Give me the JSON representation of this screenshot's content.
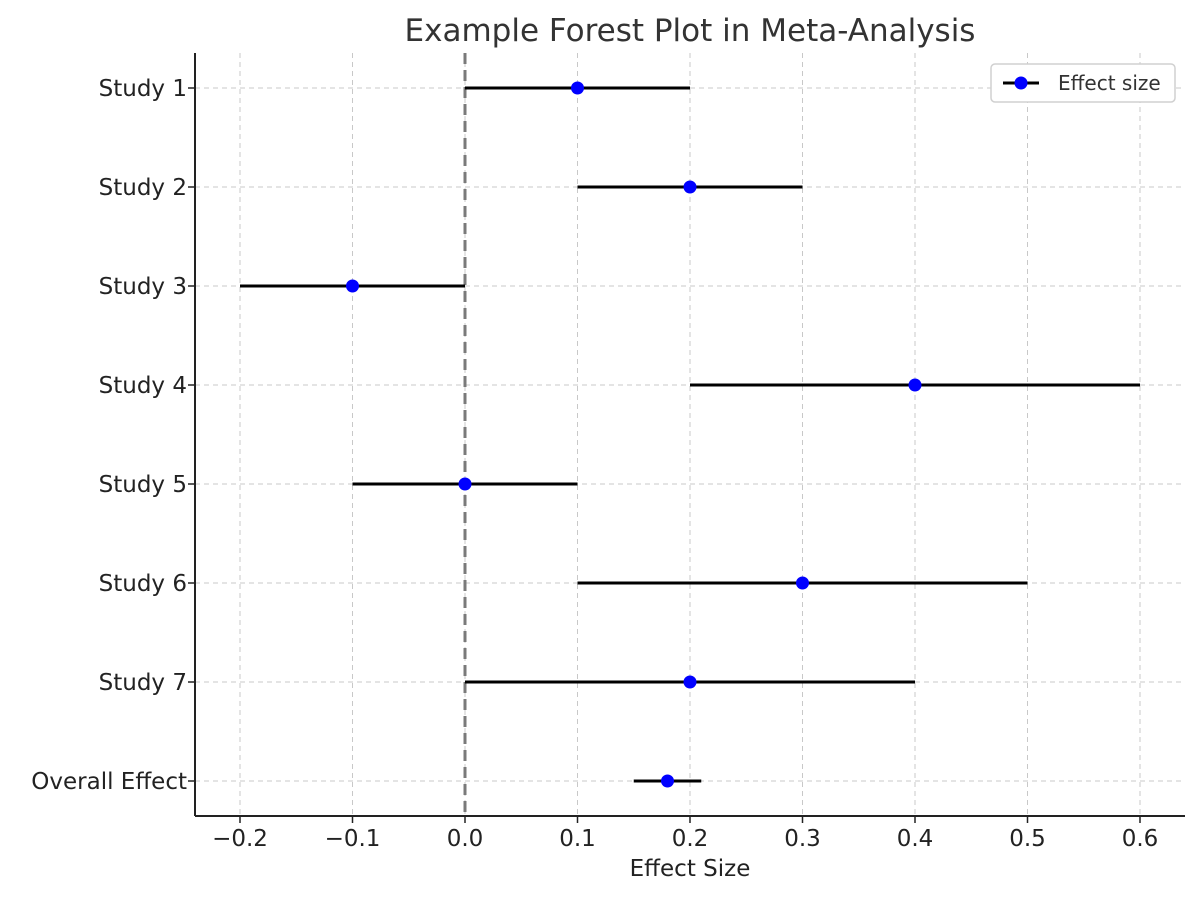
{
  "chart_data": {
    "type": "scatter",
    "title": "Example Forest Plot in Meta-Analysis",
    "xlabel": "Effect Size",
    "ylabel": "",
    "xlim": [
      -0.24,
      0.64
    ],
    "xticks": [
      -0.2,
      -0.1,
      0.0,
      0.1,
      0.2,
      0.3,
      0.4,
      0.5,
      0.6
    ],
    "xtick_labels": [
      "−0.2",
      "−0.1",
      "0.0",
      "0.1",
      "0.2",
      "0.3",
      "0.4",
      "0.5",
      "0.6"
    ],
    "categories": [
      "Study 1",
      "Study 2",
      "Study 3",
      "Study 4",
      "Study 5",
      "Study 6",
      "Study 7",
      "Overall Effect"
    ],
    "series": [
      {
        "name": "Effect size",
        "values": [
          0.1,
          0.2,
          -0.1,
          0.4,
          0.0,
          0.3,
          0.2,
          0.18
        ],
        "ci_lower": [
          0.0,
          0.1,
          -0.2,
          0.2,
          -0.1,
          0.1,
          0.0,
          0.15
        ],
        "ci_upper": [
          0.2,
          0.3,
          0.0,
          0.6,
          0.1,
          0.5,
          0.4,
          0.21
        ]
      }
    ],
    "reference_line": 0.0,
    "grid": true,
    "legend": "top-right",
    "colors": {
      "marker": "#0000ff",
      "ci": "#000000",
      "reference": "#7a7a7a",
      "grid": "#c8c8c8"
    }
  }
}
